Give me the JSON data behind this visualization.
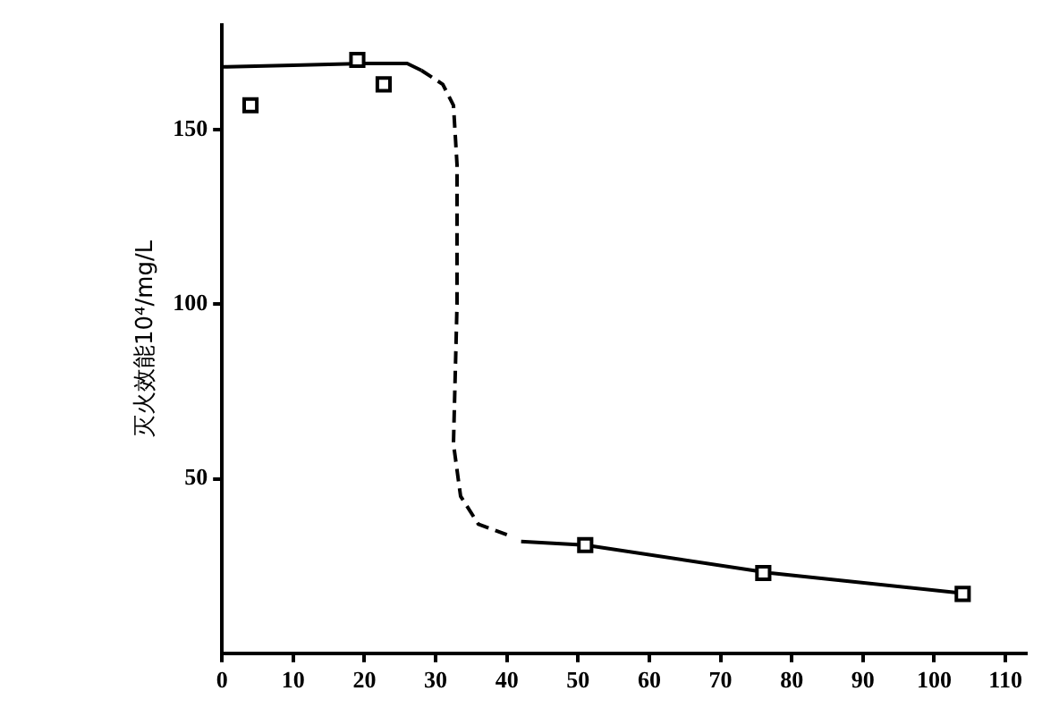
{
  "chart_data": {
    "type": "scatter",
    "ylabel": "灭火效能10⁴/mg/L",
    "xlim": [
      0,
      113
    ],
    "ylim": [
      0,
      180
    ],
    "xticks": [
      0,
      10,
      20,
      30,
      40,
      50,
      60,
      70,
      80,
      90,
      100,
      110
    ],
    "yticks": [
      50,
      100,
      150
    ],
    "grid": false,
    "legend": false,
    "series": [
      {
        "color": "#000000",
        "marker": "square",
        "x": [
          4,
          19,
          22.7,
          51,
          76,
          104
        ],
        "values": [
          157,
          170,
          163,
          31,
          23,
          17
        ]
      },
      {
        "type": "line",
        "color": "#000000",
        "marker": "none",
        "line_style": "solid",
        "x": [
          0,
          10,
          20,
          26,
          28
        ],
        "values": [
          168,
          168.5,
          169,
          169,
          167
        ]
      },
      {
        "type": "line",
        "color": "#000000",
        "marker": "none",
        "line_style": "dashed",
        "x": [
          28,
          31,
          32.5,
          33,
          33,
          32.5,
          33.5,
          36,
          40
        ],
        "values": [
          167,
          163,
          157,
          140,
          100,
          60,
          45,
          37,
          34
        ]
      },
      {
        "type": "line",
        "color": "#000000",
        "marker": "none",
        "line_style": "solid",
        "x": [
          42,
          51,
          77,
          105
        ],
        "values": [
          32,
          31,
          23,
          17
        ]
      }
    ]
  }
}
